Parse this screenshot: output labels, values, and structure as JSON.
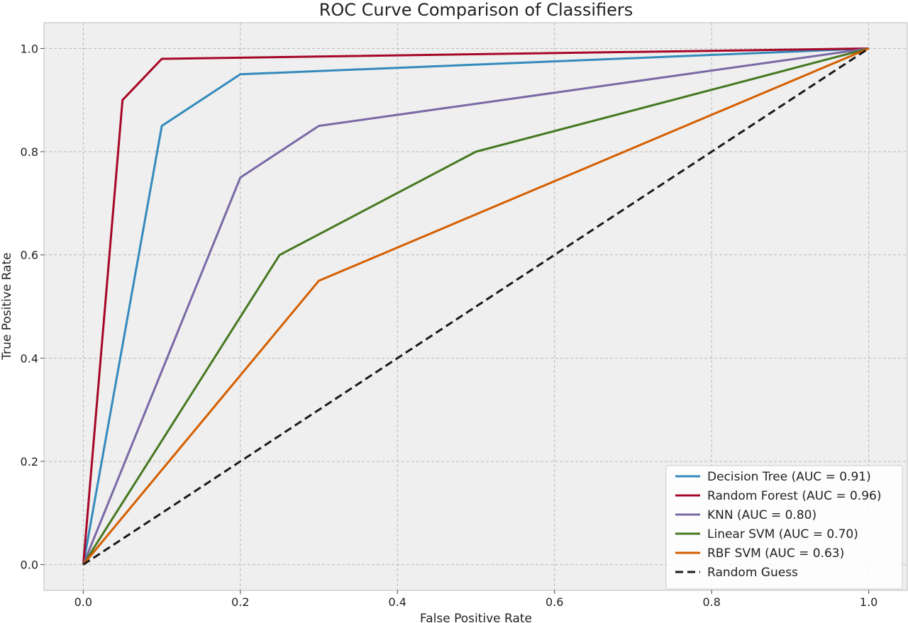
{
  "chart_data": {
    "type": "line",
    "title": "ROC Curve Comparison of Classifiers",
    "xlabel": "False Positive Rate",
    "ylabel": "True Positive Rate",
    "xlim": [
      -0.05,
      1.05
    ],
    "ylim": [
      -0.05,
      1.05
    ],
    "xticks": [
      "0.0",
      "0.2",
      "0.4",
      "0.6",
      "0.8",
      "1.0"
    ],
    "yticks": [
      "0.0",
      "0.2",
      "0.4",
      "0.6",
      "0.8",
      "1.0"
    ],
    "grid": true,
    "legend_position": "bottom-right",
    "series": [
      {
        "name": "Decision Tree (AUC = 0.91)",
        "color": "#348abd",
        "style": "solid",
        "x": [
          0,
          0.1,
          0.2,
          1.0
        ],
        "y": [
          0,
          0.85,
          0.95,
          1.0
        ]
      },
      {
        "name": "Random Forest (AUC = 0.96)",
        "color": "#a60628",
        "style": "solid",
        "x": [
          0,
          0.05,
          0.1,
          1.0
        ],
        "y": [
          0,
          0.9,
          0.98,
          1.0
        ]
      },
      {
        "name": "KNN (AUC = 0.80)",
        "color": "#7a68a6",
        "style": "solid",
        "x": [
          0,
          0.2,
          0.3,
          1.0
        ],
        "y": [
          0,
          0.75,
          0.85,
          1.0
        ]
      },
      {
        "name": "Linear SVM (AUC = 0.70)",
        "color": "#467821",
        "style": "solid",
        "x": [
          0,
          0.25,
          0.5,
          1.0
        ],
        "y": [
          0,
          0.6,
          0.8,
          1.0
        ]
      },
      {
        "name": "RBF SVM (AUC = 0.63)",
        "color": "#d55e00",
        "style": "solid",
        "x": [
          0,
          0.3,
          1.0
        ],
        "y": [
          0,
          0.55,
          1.0
        ]
      },
      {
        "name": "Random Guess",
        "color": "#1a1a1a",
        "style": "dashed",
        "x": [
          0,
          1.0
        ],
        "y": [
          0,
          1.0
        ]
      }
    ]
  },
  "colors": {
    "plot_background": "#eeefee",
    "frame": "#bcbcbc"
  }
}
